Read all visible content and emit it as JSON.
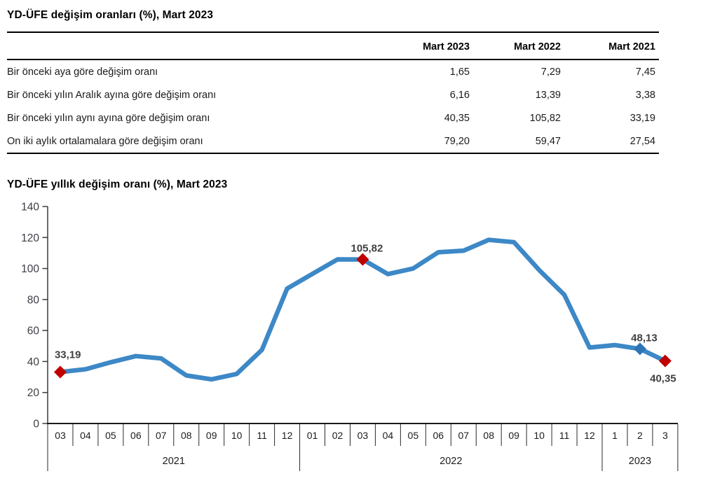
{
  "titles": {
    "section1": "YD-ÜFE değişim oranları (%), Mart 2023",
    "section2": "YD-ÜFE yıllık değişim oranı (%), Mart 2023"
  },
  "table": {
    "columns": [
      "",
      "Mart 2023",
      "Mart 2022",
      "Mart 2021"
    ],
    "rows": [
      {
        "label": "Bir önceki aya göre değişim oranı",
        "values": [
          "1,65",
          "7,29",
          "7,45"
        ]
      },
      {
        "label": "Bir önceki yılın Aralık ayına göre değişim oranı",
        "values": [
          "6,16",
          "13,39",
          "3,38"
        ]
      },
      {
        "label": "Bir önceki yılın aynı ayına göre değişim oranı",
        "values": [
          "40,35",
          "105,82",
          "33,19"
        ]
      },
      {
        "label": "On iki aylık ortalamalara göre değişim oranı",
        "values": [
          "79,20",
          "59,47",
          "27,54"
        ]
      }
    ]
  },
  "chart_data": {
    "type": "line",
    "title": "YD-ÜFE yıllık değişim oranı (%), Mart 2023",
    "x_categories": [
      "03",
      "04",
      "05",
      "06",
      "07",
      "08",
      "09",
      "10",
      "11",
      "12",
      "01",
      "02",
      "03",
      "04",
      "05",
      "06",
      "07",
      "08",
      "09",
      "10",
      "11",
      "12",
      "1",
      "2",
      "3"
    ],
    "year_groups": [
      {
        "label": "2021",
        "count": 10
      },
      {
        "label": "2022",
        "count": 12
      },
      {
        "label": "2023",
        "count": 3
      }
    ],
    "values": [
      33.19,
      35.0,
      39.5,
      43.5,
      42.0,
      31.0,
      28.5,
      32.0,
      47.5,
      87.0,
      96.5,
      105.9,
      105.82,
      96.4,
      100.0,
      110.5,
      111.5,
      118.5,
      117.0,
      99.0,
      83.0,
      49.0,
      50.6,
      48.13,
      40.35
    ],
    "ylim": [
      0,
      140
    ],
    "ytick_step": 20,
    "grid": false,
    "line_color": "#3D88C6",
    "axis_text_color": "#3d3d46",
    "label_text_color": "#404040",
    "annotations": [
      {
        "index": 0,
        "label": "33,19",
        "marker_color": "#C00000",
        "placement": "above-start"
      },
      {
        "index": 12,
        "label": "105,82",
        "marker_color": "#C00000",
        "placement": "above"
      },
      {
        "index": 23,
        "label": "48,13",
        "marker_color": "#2E75B6",
        "placement": "above"
      },
      {
        "index": 24,
        "label": "40,35",
        "marker_color": "#C00000",
        "placement": "below"
      }
    ]
  }
}
